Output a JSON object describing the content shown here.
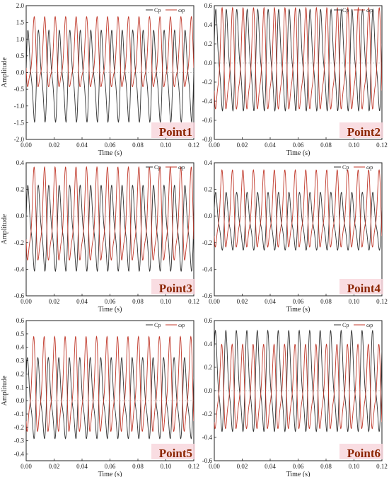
{
  "chart_data": [
    {
      "type": "line",
      "point_label": "Point1",
      "xlabel": "Time (s)",
      "ylabel": "Amplitude",
      "xlim": [
        0,
        0.12
      ],
      "ylim": [
        -2.0,
        2.0
      ],
      "x_ticks": [
        "0.00",
        "0.02",
        "0.04",
        "0.06",
        "0.08",
        "0.10",
        "0.12"
      ],
      "y_ticks": [
        "-2.0",
        "-1.5",
        "-1.0",
        "-0.5",
        "0.0",
        "0.5",
        "1.0",
        "1.5",
        "2.0"
      ],
      "legend": [
        "Cp",
        "ωp"
      ],
      "series": [
        {
          "name": "Cp",
          "color": "#333333",
          "amplitude": 1.45,
          "period": 0.0075,
          "phase": 0.1,
          "min": -1.7,
          "max": 1.45
        },
        {
          "name": "ωp",
          "color": "#c0392b",
          "amplitude": 1.15,
          "period": 0.0075,
          "phase": 3.2,
          "min": -0.8,
          "max": 1.7
        }
      ]
    },
    {
      "type": "line",
      "point_label": "Point2",
      "xlabel": "Time (s)",
      "ylabel": "",
      "xlim": [
        0,
        0.12
      ],
      "ylim": [
        -0.8,
        0.6
      ],
      "x_ticks": [
        "0.00",
        "0.02",
        "0.04",
        "0.06",
        "0.08",
        "0.10",
        "0.12"
      ],
      "y_ticks": [
        "-0.8",
        "-0.6",
        "-0.4",
        "-0.2",
        "0.0",
        "0.2",
        "0.4",
        "0.6"
      ],
      "legend": [
        "Cp",
        "ωp"
      ],
      "series": [
        {
          "name": "Cp",
          "color": "#333333",
          "amplitude": 0.55,
          "period": 0.0075,
          "phase": 0.3,
          "min": -0.6,
          "max": 0.62
        },
        {
          "name": "ωp",
          "color": "#c0392b",
          "amplitude": 0.6,
          "period": 0.0075,
          "phase": 3.4,
          "min": -0.65,
          "max": 0.6
        }
      ]
    },
    {
      "type": "line",
      "point_label": "Point3",
      "xlabel": "Time (s)",
      "ylabel": "Amplitude",
      "xlim": [
        0,
        0.12
      ],
      "ylim": [
        -0.6,
        0.4
      ],
      "x_ticks": [
        "0.00",
        "0.02",
        "0.04",
        "0.06",
        "0.08",
        "0.10",
        "0.12"
      ],
      "y_ticks": [
        "-0.6",
        "-0.4",
        "-0.2",
        "0.0",
        "0.2",
        "0.4"
      ],
      "legend": [
        "Cp",
        "ωp"
      ],
      "series": [
        {
          "name": "Cp",
          "color": "#333333",
          "amplitude": 0.3,
          "period": 0.0075,
          "phase": 0.2,
          "min": -0.47,
          "max": 0.27
        },
        {
          "name": "ωp",
          "color": "#c0392b",
          "amplitude": 0.32,
          "period": 0.0075,
          "phase": 3.3,
          "min": -0.45,
          "max": 0.38
        }
      ]
    },
    {
      "type": "line",
      "point_label": "Point4",
      "xlabel": "Time (s)",
      "ylabel": "",
      "xlim": [
        0,
        0.12
      ],
      "ylim": [
        -0.6,
        0.4
      ],
      "x_ticks": [
        "0.00",
        "0.02",
        "0.04",
        "0.06",
        "0.08",
        "0.10",
        "0.12"
      ],
      "y_ticks": [
        "-0.6",
        "-0.4",
        "-0.2",
        "0.0",
        "0.2",
        "0.4"
      ],
      "legend": [
        "Cp",
        "ωp"
      ],
      "series": [
        {
          "name": "Cp",
          "color": "#333333",
          "amplitude": 0.22,
          "period": 0.0075,
          "phase": 0.4,
          "min": -0.3,
          "max": 0.2
        },
        {
          "name": "ωp",
          "color": "#c0392b",
          "amplitude": 0.32,
          "period": 0.0075,
          "phase": 3.5,
          "min": -0.32,
          "max": 0.36
        }
      ]
    },
    {
      "type": "line",
      "point_label": "Point5",
      "xlabel": "Time (s)",
      "ylabel": "Amplitude",
      "xlim": [
        0,
        0.12
      ],
      "ylim": [
        -0.45,
        0.6
      ],
      "x_ticks": [
        "0.00",
        "0.02",
        "0.04",
        "0.06",
        "0.08",
        "0.10",
        "0.12"
      ],
      "y_ticks": [
        "-0.4",
        "-0.3",
        "-0.2",
        "-0.1",
        "0.0",
        "0.1",
        "0.2",
        "0.3",
        "0.4",
        "0.5",
        "0.6"
      ],
      "legend": [
        "Cp",
        "ωp"
      ],
      "series": [
        {
          "name": "Cp",
          "color": "#333333",
          "amplitude": 0.35,
          "period": 0.0075,
          "phase": 0.5,
          "min": -0.35,
          "max": 0.35
        },
        {
          "name": "ωp",
          "color": "#c0392b",
          "amplitude": 0.4,
          "period": 0.0075,
          "phase": 3.6,
          "min": -0.33,
          "max": 0.5
        }
      ]
    },
    {
      "type": "line",
      "point_label": "Point6",
      "xlabel": "Time (s)",
      "ylabel": "",
      "xlim": [
        0,
        0.12
      ],
      "ylim": [
        -0.6,
        0.6
      ],
      "x_ticks": [
        "0.00",
        "0.02",
        "0.04",
        "0.06",
        "0.08",
        "0.10",
        "0.12"
      ],
      "y_ticks": [
        "-0.6",
        "-0.4",
        "-0.2",
        "0.0",
        "0.2",
        "0.4",
        "0.6"
      ],
      "legend": [
        "Cp",
        "ωp"
      ],
      "series": [
        {
          "name": "Cp",
          "color": "#333333",
          "amplitude": 0.5,
          "period": 0.0075,
          "phase": 0.6,
          "min": -0.45,
          "max": 0.55
        },
        {
          "name": "ωp",
          "color": "#c0392b",
          "amplitude": 0.42,
          "period": 0.0075,
          "phase": 3.7,
          "min": -0.42,
          "max": 0.42
        }
      ]
    }
  ],
  "colors": {
    "point_label": "#8b2500",
    "label_highlight": "#f8d7dd",
    "axis": "#222222",
    "grid_zero": "#888888"
  }
}
